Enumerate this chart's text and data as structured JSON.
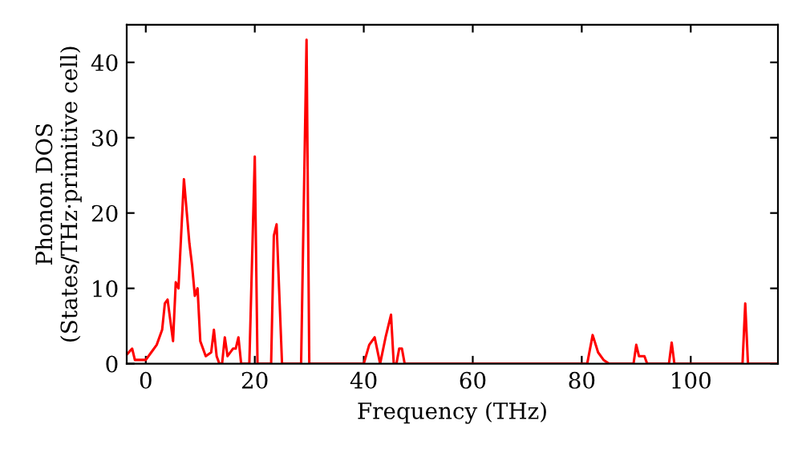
{
  "chart_data": {
    "type": "line",
    "xlabel": "Frequency (THz)",
    "ylabel": "Phonon DOS\n(States/THz·primitive cell)",
    "series": [
      {
        "color": "#ff0000",
        "x": [
          -3.5,
          -2.5,
          -2,
          0,
          1,
          2,
          3,
          3.5,
          4,
          5,
          5.5,
          6,
          7,
          8,
          8.5,
          9,
          9.5,
          10,
          11,
          12,
          12.5,
          13,
          13.5,
          14,
          14.5,
          15,
          16,
          16.5,
          17,
          17.5,
          19,
          20,
          20.5,
          23,
          23.5,
          24,
          25,
          28.5,
          29.5,
          30,
          40,
          41,
          42,
          43,
          44,
          45,
          45.5,
          46,
          46.5,
          47,
          47.5,
          81,
          82,
          83,
          84,
          85,
          89.5,
          90,
          90.5,
          91.5,
          92,
          96,
          96.5,
          97,
          109.5,
          110,
          110.5,
          116
        ],
        "values": [
          1.2,
          2,
          0.5,
          0.5,
          1.5,
          2.5,
          4.5,
          8,
          8.5,
          3,
          10.8,
          10,
          24.5,
          16,
          13,
          9,
          10,
          3,
          1,
          1.5,
          4.5,
          1,
          0,
          0,
          3.5,
          1,
          2,
          2,
          3.5,
          0,
          0,
          27.5,
          0,
          0,
          17,
          18.5,
          0,
          0,
          43,
          0,
          0,
          2.5,
          3.5,
          0,
          3.5,
          6.5,
          0,
          0,
          2,
          2,
          0,
          0,
          3.8,
          1.5,
          0.5,
          0,
          0,
          2.5,
          1,
          1,
          0,
          0,
          2.8,
          0,
          0,
          8,
          0,
          0
        ]
      }
    ],
    "xlim": [
      -3.5,
      116
    ],
    "ylim": [
      0,
      45
    ],
    "xticks": [
      0,
      20,
      40,
      60,
      80,
      100
    ],
    "yticks": [
      0,
      10,
      20,
      30,
      40
    ],
    "grid": false
  }
}
